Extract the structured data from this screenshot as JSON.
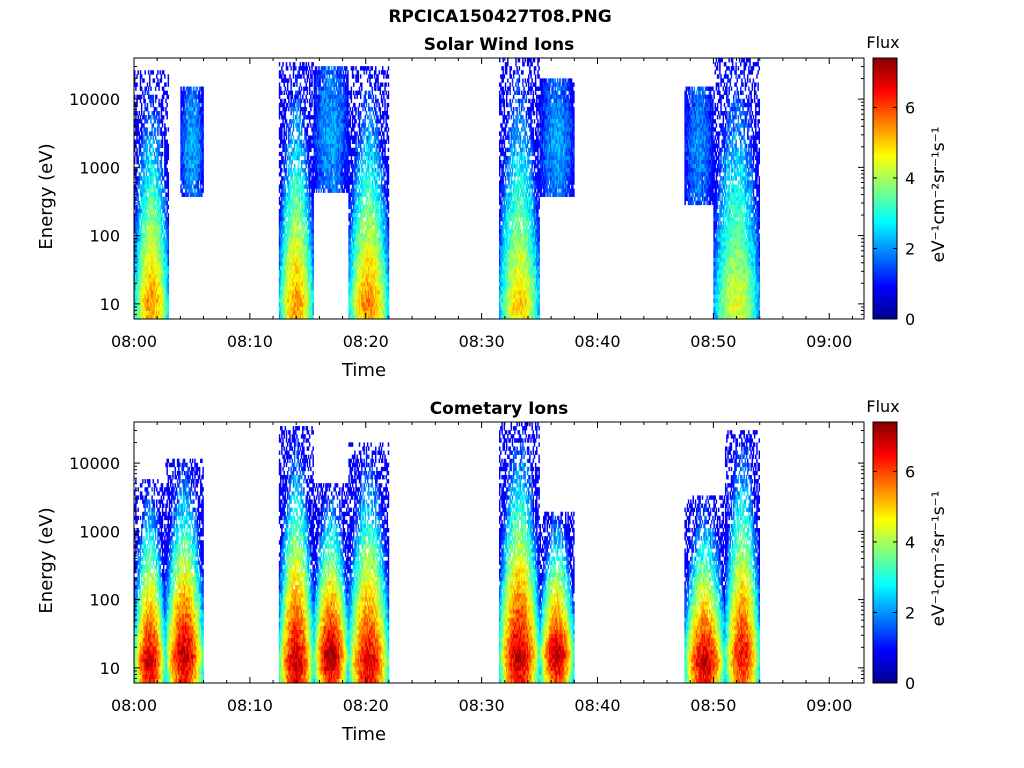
{
  "page": {
    "title": "RPCICA150427T08.PNG"
  },
  "colors": {
    "colormap": "jet",
    "axis": "#000000",
    "background": "#ffffff"
  },
  "chart_data": [
    {
      "type": "heatmap",
      "title": "Solar Wind Ions",
      "xlabel": "Time",
      "ylabel": "Energy (eV)",
      "x_ticks": [
        "08:00",
        "08:10",
        "08:20",
        "08:30",
        "08:40",
        "08:50",
        "09:00"
      ],
      "xlim": [
        "08:00",
        "09:03"
      ],
      "y_scale": "log",
      "y_ticks": [
        10,
        100,
        1000,
        10000
      ],
      "ylim": [
        6,
        40000
      ],
      "colorbar": {
        "title": "Flux",
        "label": "eV⁻¹cm⁻²sr⁻¹s⁻¹",
        "ticks": [
          0,
          2,
          4,
          6
        ],
        "range": [
          0,
          7.4
        ]
      },
      "bursts": [
        {
          "start": "08:00",
          "end": "08:03",
          "energy_range_eV": [
            6,
            25000
          ],
          "peak_energy_eV": 10,
          "peak_flux": 5.5
        },
        {
          "start": "08:04",
          "end": "08:06",
          "energy_range_eV": [
            350,
            15000
          ],
          "peak_energy_eV": 2000,
          "peak_flux": 2.3
        },
        {
          "start": "08:12.5",
          "end": "08:15.5",
          "energy_range_eV": [
            6,
            35000
          ],
          "peak_energy_eV": 10,
          "peak_flux": 5.5
        },
        {
          "start": "08:15.5",
          "end": "08:18.5",
          "energy_range_eV": [
            400,
            30000
          ],
          "peak_energy_eV": 3000,
          "peak_flux": 2.2
        },
        {
          "start": "08:18.5",
          "end": "08:22",
          "energy_range_eV": [
            6,
            30000
          ],
          "peak_energy_eV": 10,
          "peak_flux": 5.6
        },
        {
          "start": "08:31.5",
          "end": "08:35",
          "energy_range_eV": [
            6,
            40000
          ],
          "peak_energy_eV": 10,
          "peak_flux": 5.0
        },
        {
          "start": "08:35",
          "end": "08:38",
          "energy_range_eV": [
            350,
            20000
          ],
          "peak_energy_eV": 2000,
          "peak_flux": 2.2
        },
        {
          "start": "08:47.5",
          "end": "08:50",
          "energy_range_eV": [
            300,
            15000
          ],
          "peak_energy_eV": 2000,
          "peak_flux": 2.0
        },
        {
          "start": "08:50",
          "end": "08:54",
          "energy_range_eV": [
            6,
            38000
          ],
          "peak_energy_eV": 10,
          "peak_flux": 4.5
        }
      ]
    },
    {
      "type": "heatmap",
      "title": "Cometary Ions",
      "xlabel": "Time",
      "ylabel": "Energy (eV)",
      "x_ticks": [
        "08:00",
        "08:10",
        "08:20",
        "08:30",
        "08:40",
        "08:50",
        "09:00"
      ],
      "xlim": [
        "08:00",
        "09:03"
      ],
      "y_scale": "log",
      "y_ticks": [
        10,
        100,
        1000,
        10000
      ],
      "ylim": [
        6,
        40000
      ],
      "colorbar": {
        "title": "Flux",
        "label": "eV⁻¹cm⁻²sr⁻¹s⁻¹",
        "ticks": [
          0,
          2,
          4,
          6
        ],
        "range": [
          0,
          7.4
        ]
      },
      "bursts": [
        {
          "start": "08:00",
          "end": "08:02.7",
          "energy_range_eV": [
            6,
            6000
          ],
          "peak_energy_eV": 12,
          "peak_flux": 7.0
        },
        {
          "start": "08:02.7",
          "end": "08:06",
          "energy_range_eV": [
            6,
            12000
          ],
          "peak_energy_eV": 15,
          "peak_flux": 7.0
        },
        {
          "start": "08:12.5",
          "end": "08:15.5",
          "energy_range_eV": [
            6,
            35000
          ],
          "peak_energy_eV": 12,
          "peak_flux": 7.0
        },
        {
          "start": "08:15.5",
          "end": "08:18.5",
          "energy_range_eV": [
            6,
            5000
          ],
          "peak_energy_eV": 15,
          "peak_flux": 7.2
        },
        {
          "start": "08:18.5",
          "end": "08:22",
          "energy_range_eV": [
            6,
            20000
          ],
          "peak_energy_eV": 12,
          "peak_flux": 6.8
        },
        {
          "start": "08:31.5",
          "end": "08:35",
          "energy_range_eV": [
            6,
            40000
          ],
          "peak_energy_eV": 15,
          "peak_flux": 7.0
        },
        {
          "start": "08:35",
          "end": "08:38",
          "energy_range_eV": [
            6,
            2000
          ],
          "peak_energy_eV": 15,
          "peak_flux": 7.0
        },
        {
          "start": "08:47.5",
          "end": "08:51",
          "energy_range_eV": [
            6,
            3500
          ],
          "peak_energy_eV": 12,
          "peak_flux": 7.0
        },
        {
          "start": "08:51",
          "end": "08:54",
          "energy_range_eV": [
            6,
            30000
          ],
          "peak_energy_eV": 15,
          "peak_flux": 6.5
        }
      ]
    }
  ]
}
